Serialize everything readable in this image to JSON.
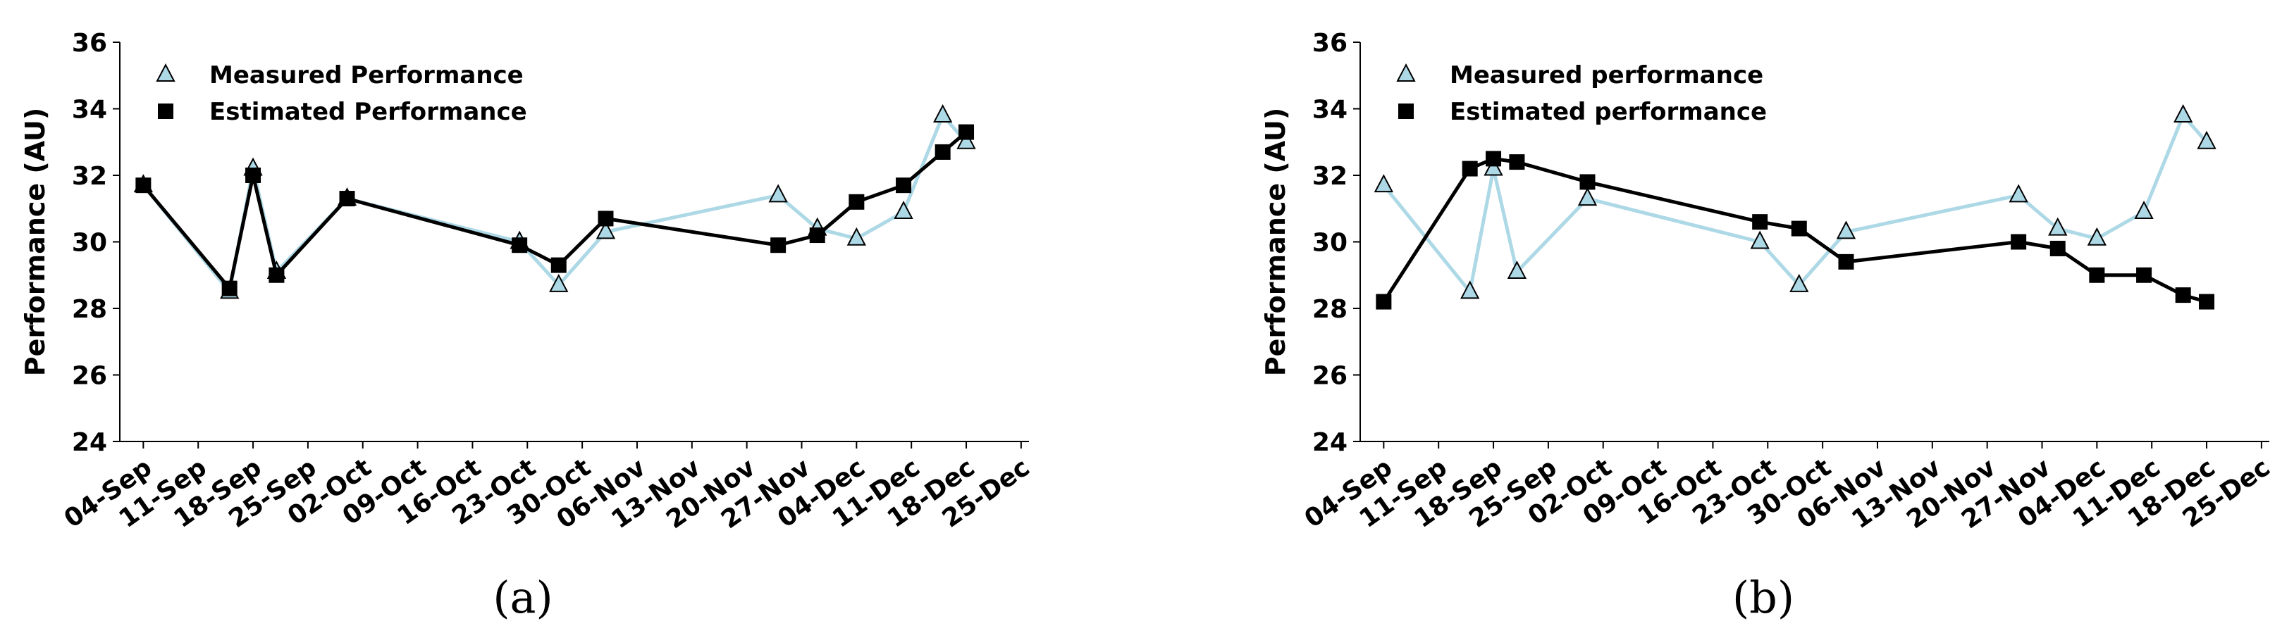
{
  "colors": {
    "measured": "#add8e6",
    "estimated": "#000000",
    "axis": "#000000"
  },
  "chart_data": [
    {
      "type": "line",
      "caption": "(a)",
      "xlabel": "",
      "ylabel": "Performance (AU)",
      "ylim": [
        24,
        36
      ],
      "yticks": [
        "24",
        "26",
        "28",
        "30",
        "32",
        "34",
        "36"
      ],
      "xlim": [
        "2023-09-01",
        "2023-12-26"
      ],
      "xticks": [
        {
          "date": "2023-09-04",
          "label": "04-Sep"
        },
        {
          "date": "2023-09-11",
          "label": "11-Sep"
        },
        {
          "date": "2023-09-18",
          "label": "18-Sep"
        },
        {
          "date": "2023-09-25",
          "label": "25-Sep"
        },
        {
          "date": "2023-10-02",
          "label": "02-Oct"
        },
        {
          "date": "2023-10-09",
          "label": "09-Oct"
        },
        {
          "date": "2023-10-16",
          "label": "16-Oct"
        },
        {
          "date": "2023-10-23",
          "label": "23-Oct"
        },
        {
          "date": "2023-10-30",
          "label": "30-Oct"
        },
        {
          "date": "2023-11-06",
          "label": "06-Nov"
        },
        {
          "date": "2023-11-13",
          "label": "13-Nov"
        },
        {
          "date": "2023-11-20",
          "label": "20-Nov"
        },
        {
          "date": "2023-11-27",
          "label": "27-Nov"
        },
        {
          "date": "2023-12-04",
          "label": "04-Dec"
        },
        {
          "date": "2023-12-11",
          "label": "11-Dec"
        },
        {
          "date": "2023-12-18",
          "label": "18-Dec"
        },
        {
          "date": "2023-12-25",
          "label": "25-Dec"
        }
      ],
      "legend": "upper-left",
      "grid": false,
      "series": [
        {
          "name": "Measured Performance",
          "marker": "triangle",
          "color": "#add8e6",
          "points": [
            {
              "x": "2023-09-04",
              "y": 31.7
            },
            {
              "x": "2023-09-15",
              "y": 28.5
            },
            {
              "x": "2023-09-18",
              "y": 32.2
            },
            {
              "x": "2023-09-21",
              "y": 29.1
            },
            {
              "x": "2023-09-30",
              "y": 31.3
            },
            {
              "x": "2023-10-22",
              "y": 30.0
            },
            {
              "x": "2023-10-27",
              "y": 28.7
            },
            {
              "x": "2023-11-02",
              "y": 30.3
            },
            {
              "x": "2023-11-24",
              "y": 31.4
            },
            {
              "x": "2023-11-29",
              "y": 30.4
            },
            {
              "x": "2023-12-04",
              "y": 30.1
            },
            {
              "x": "2023-12-10",
              "y": 30.9
            },
            {
              "x": "2023-12-15",
              "y": 33.8
            },
            {
              "x": "2023-12-18",
              "y": 33.0
            }
          ]
        },
        {
          "name": "Estimated Performance",
          "marker": "square",
          "color": "#000000",
          "points": [
            {
              "x": "2023-09-04",
              "y": 31.7
            },
            {
              "x": "2023-09-15",
              "y": 28.6
            },
            {
              "x": "2023-09-18",
              "y": 32.0
            },
            {
              "x": "2023-09-21",
              "y": 29.0
            },
            {
              "x": "2023-09-30",
              "y": 31.3
            },
            {
              "x": "2023-10-22",
              "y": 29.9
            },
            {
              "x": "2023-10-27",
              "y": 29.3
            },
            {
              "x": "2023-11-02",
              "y": 30.7
            },
            {
              "x": "2023-11-24",
              "y": 29.9
            },
            {
              "x": "2023-11-29",
              "y": 30.2
            },
            {
              "x": "2023-12-04",
              "y": 31.2
            },
            {
              "x": "2023-12-10",
              "y": 31.7
            },
            {
              "x": "2023-12-15",
              "y": 32.7
            },
            {
              "x": "2023-12-18",
              "y": 33.3
            }
          ]
        }
      ]
    },
    {
      "type": "line",
      "caption": "(b)",
      "xlabel": "",
      "ylabel": "Performance (AU)",
      "ylim": [
        24,
        36
      ],
      "yticks": [
        "24",
        "26",
        "28",
        "30",
        "32",
        "34",
        "36"
      ],
      "xlim": [
        "2023-09-01",
        "2023-12-26"
      ],
      "xticks": [
        {
          "date": "2023-09-04",
          "label": "04-Sep"
        },
        {
          "date": "2023-09-11",
          "label": "11-Sep"
        },
        {
          "date": "2023-09-18",
          "label": "18-Sep"
        },
        {
          "date": "2023-09-25",
          "label": "25-Sep"
        },
        {
          "date": "2023-10-02",
          "label": "02-Oct"
        },
        {
          "date": "2023-10-09",
          "label": "09-Oct"
        },
        {
          "date": "2023-10-16",
          "label": "16-Oct"
        },
        {
          "date": "2023-10-23",
          "label": "23-Oct"
        },
        {
          "date": "2023-10-30",
          "label": "30-Oct"
        },
        {
          "date": "2023-11-06",
          "label": "06-Nov"
        },
        {
          "date": "2023-11-13",
          "label": "13-Nov"
        },
        {
          "date": "2023-11-20",
          "label": "20-Nov"
        },
        {
          "date": "2023-11-27",
          "label": "27-Nov"
        },
        {
          "date": "2023-12-04",
          "label": "04-Dec"
        },
        {
          "date": "2023-12-11",
          "label": "11-Dec"
        },
        {
          "date": "2023-12-18",
          "label": "18-Dec"
        },
        {
          "date": "2023-12-25",
          "label": "25-Dec"
        }
      ],
      "legend": "upper-left",
      "grid": false,
      "series": [
        {
          "name": "Measured performance",
          "marker": "triangle",
          "color": "#add8e6",
          "points": [
            {
              "x": "2023-09-04",
              "y": 31.7
            },
            {
              "x": "2023-09-15",
              "y": 28.5
            },
            {
              "x": "2023-09-18",
              "y": 32.2
            },
            {
              "x": "2023-09-21",
              "y": 29.1
            },
            {
              "x": "2023-09-30",
              "y": 31.3
            },
            {
              "x": "2023-10-22",
              "y": 30.0
            },
            {
              "x": "2023-10-27",
              "y": 28.7
            },
            {
              "x": "2023-11-02",
              "y": 30.3
            },
            {
              "x": "2023-11-24",
              "y": 31.4
            },
            {
              "x": "2023-11-29",
              "y": 30.4
            },
            {
              "x": "2023-12-04",
              "y": 30.1
            },
            {
              "x": "2023-12-10",
              "y": 30.9
            },
            {
              "x": "2023-12-15",
              "y": 33.8
            },
            {
              "x": "2023-12-18",
              "y": 33.0
            }
          ]
        },
        {
          "name": "Estimated performance",
          "marker": "square",
          "color": "#000000",
          "points": [
            {
              "x": "2023-09-04",
              "y": 28.2
            },
            {
              "x": "2023-09-15",
              "y": 32.2
            },
            {
              "x": "2023-09-18",
              "y": 32.5
            },
            {
              "x": "2023-09-21",
              "y": 32.4
            },
            {
              "x": "2023-09-30",
              "y": 31.8
            },
            {
              "x": "2023-10-22",
              "y": 30.6
            },
            {
              "x": "2023-10-27",
              "y": 30.4
            },
            {
              "x": "2023-11-02",
              "y": 29.4
            },
            {
              "x": "2023-11-24",
              "y": 30.0
            },
            {
              "x": "2023-11-29",
              "y": 29.8
            },
            {
              "x": "2023-12-04",
              "y": 29.0
            },
            {
              "x": "2023-12-10",
              "y": 29.0
            },
            {
              "x": "2023-12-15",
              "y": 28.4
            },
            {
              "x": "2023-12-18",
              "y": 28.2
            }
          ]
        }
      ]
    }
  ]
}
